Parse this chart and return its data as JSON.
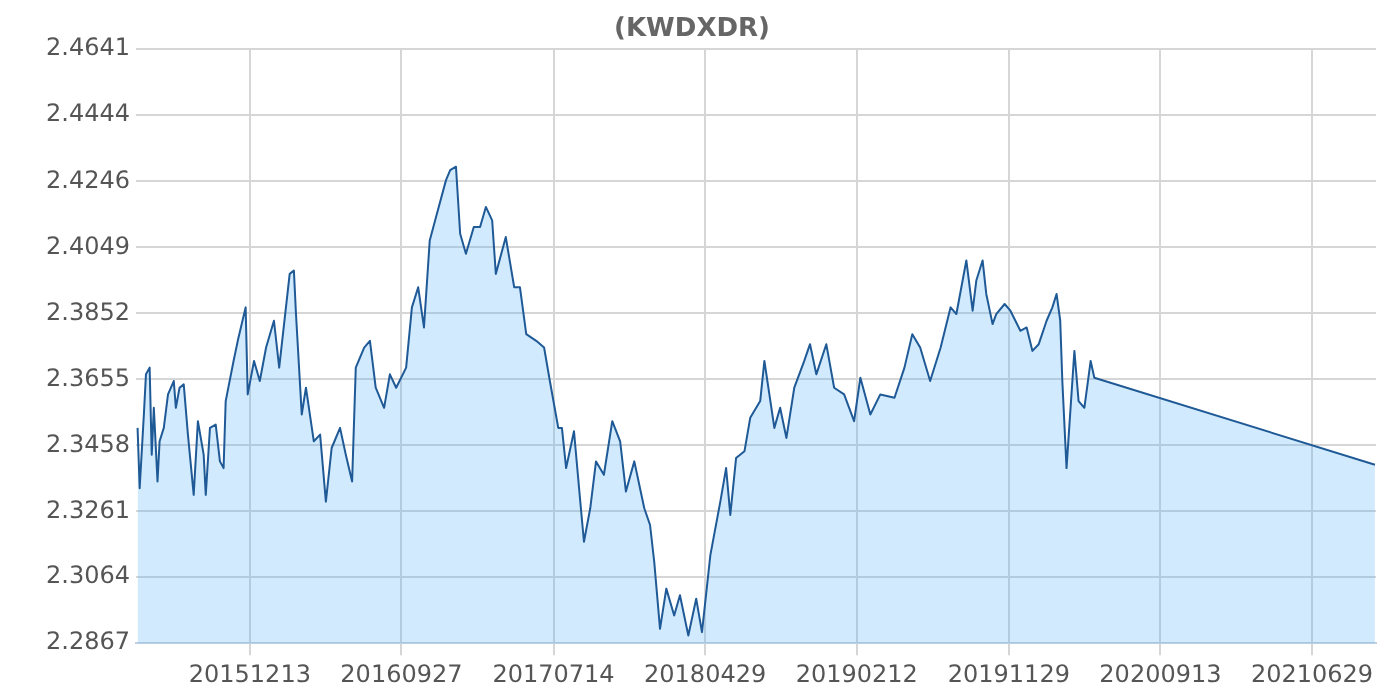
{
  "chart_data": {
    "type": "area",
    "title": "(KWDXDR)",
    "x": [
      "2015-05-13",
      "2015-05-17",
      "2015-05-25",
      "2015-05-29",
      "2015-06-05",
      "2015-06-09",
      "2015-06-13",
      "2015-06-20",
      "2015-06-24",
      "2015-07-02",
      "2015-07-10",
      "2015-07-21",
      "2015-07-25",
      "2015-08-01",
      "2015-08-09",
      "2015-08-17",
      "2015-08-28",
      "2015-09-05",
      "2015-09-16",
      "2015-09-20",
      "2015-09-28",
      "2015-10-09",
      "2015-10-17",
      "2015-10-24",
      "2015-10-28",
      "2015-11-12",
      "2015-11-20",
      "2015-12-05",
      "2015-12-09",
      "2015-12-21",
      "2016-01-01",
      "2016-01-13",
      "2016-01-28",
      "2016-02-07",
      "2016-02-27",
      "2016-03-06",
      "2016-03-10",
      "2016-03-21",
      "2016-03-29",
      "2016-04-13",
      "2016-04-25",
      "2016-05-06",
      "2016-05-17",
      "2016-06-02",
      "2016-06-13",
      "2016-06-25",
      "2016-07-02",
      "2016-07-18",
      "2016-07-29",
      "2016-08-09",
      "2016-08-25",
      "2016-09-05",
      "2016-09-17",
      "2016-10-06",
      "2016-10-17",
      "2016-10-29",
      "2016-11-09",
      "2016-11-20",
      "2016-12-02",
      "2016-12-21",
      "2016-12-29",
      "2017-01-09",
      "2017-01-17",
      "2017-01-28",
      "2017-02-12",
      "2017-02-24",
      "2017-03-07",
      "2017-03-19",
      "2017-03-26",
      "2017-04-14",
      "2017-04-30",
      "2017-05-11",
      "2017-05-23",
      "2017-06-11",
      "2017-06-26",
      "2017-07-07",
      "2017-07-23",
      "2017-07-30",
      "2017-08-07",
      "2017-08-22",
      "2017-09-03",
      "2017-09-10",
      "2017-09-22",
      "2017-10-03",
      "2017-10-18",
      "2017-11-03",
      "2017-11-18",
      "2017-11-29",
      "2017-12-15",
      "2018-01-03",
      "2018-01-14",
      "2018-01-22",
      "2018-02-02",
      "2018-02-14",
      "2018-03-01",
      "2018-03-12",
      "2018-03-28",
      "2018-04-12",
      "2018-04-23",
      "2018-05-09",
      "2018-05-28",
      "2018-06-08",
      "2018-06-16",
      "2018-06-27",
      "2018-07-13",
      "2018-07-24",
      "2018-08-12",
      "2018-08-20",
      "2018-09-08",
      "2018-09-19",
      "2018-10-01",
      "2018-10-16",
      "2018-11-04",
      "2018-11-15",
      "2018-11-27",
      "2018-12-16",
      "2018-12-31",
      "2019-01-19",
      "2019-02-07",
      "2019-02-19",
      "2019-03-10",
      "2019-03-29",
      "2019-04-25",
      "2019-05-14",
      "2019-05-29",
      "2019-06-13",
      "2019-07-02",
      "2019-07-22",
      "2019-08-10",
      "2019-08-21",
      "2019-09-09",
      "2019-09-21",
      "2019-09-28",
      "2019-10-10",
      "2019-10-17",
      "2019-10-29",
      "2019-11-05",
      "2019-11-21",
      "2019-12-02",
      "2019-12-21",
      "2020-01-02",
      "2020-01-13",
      "2020-01-25",
      "2020-02-09",
      "2020-02-20",
      "2020-02-28",
      "2020-03-06",
      "2020-03-10",
      "2020-03-18",
      "2020-04-02",
      "2020-04-10",
      "2020-04-21",
      "2020-05-03",
      "2020-05-10",
      "2021-10-27"
    ],
    "series": [
      {
        "color": "#1f5a96",
        "values": [
          2.351,
          2.333,
          2.355,
          2.367,
          2.369,
          2.343,
          2.357,
          2.335,
          2.347,
          2.351,
          2.361,
          2.365,
          2.357,
          2.363,
          2.364,
          2.349,
          2.331,
          2.353,
          2.343,
          2.331,
          2.351,
          2.352,
          2.341,
          2.339,
          2.359,
          2.371,
          2.377,
          2.387,
          2.361,
          2.371,
          2.365,
          2.375,
          2.383,
          2.369,
          2.397,
          2.398,
          2.385,
          2.355,
          2.363,
          2.347,
          2.349,
          2.329,
          2.345,
          2.351,
          2.343,
          2.335,
          2.369,
          2.375,
          2.377,
          2.363,
          2.357,
          2.367,
          2.363,
          2.369,
          2.387,
          2.393,
          2.381,
          2.407,
          2.414,
          2.425,
          2.428,
          2.429,
          2.409,
          2.403,
          2.411,
          2.411,
          2.417,
          2.413,
          2.397,
          2.408,
          2.393,
          2.393,
          2.379,
          2.377,
          2.375,
          2.365,
          2.351,
          2.351,
          2.339,
          2.35,
          2.329,
          2.317,
          2.327,
          2.341,
          2.337,
          2.353,
          2.347,
          2.332,
          2.341,
          2.327,
          2.322,
          2.311,
          2.291,
          2.303,
          2.295,
          2.301,
          2.289,
          2.3,
          2.29,
          2.313,
          2.329,
          2.339,
          2.325,
          2.342,
          2.344,
          2.354,
          2.359,
          2.371,
          2.351,
          2.357,
          2.348,
          2.363,
          2.371,
          2.376,
          2.367,
          2.376,
          2.363,
          2.361,
          2.353,
          2.366,
          2.355,
          2.361,
          2.36,
          2.369,
          2.379,
          2.375,
          2.365,
          2.375,
          2.387,
          2.385,
          2.401,
          2.386,
          2.395,
          2.401,
          2.391,
          2.382,
          2.385,
          2.388,
          2.386,
          2.38,
          2.381,
          2.374,
          2.376,
          2.383,
          2.387,
          2.391,
          2.383,
          2.365,
          2.339,
          2.374,
          2.359,
          2.357,
          2.371,
          2.366,
          2.34
        ]
      }
    ],
    "xlim": [
      "2015-05-10",
      "2021-10-29"
    ],
    "xticks": [
      {
        "value": "2015-12-13",
        "label": "20151213"
      },
      {
        "value": "2016-09-27",
        "label": "20160927"
      },
      {
        "value": "2017-07-14",
        "label": "20170714"
      },
      {
        "value": "2018-04-29",
        "label": "20180429"
      },
      {
        "value": "2019-02-12",
        "label": "20190212"
      },
      {
        "value": "2019-11-29",
        "label": "20191129"
      },
      {
        "value": "2020-09-13",
        "label": "20200913"
      },
      {
        "value": "2021-06-29",
        "label": "20210629"
      }
    ],
    "ylim": [
      2.2867,
      2.4641
    ],
    "yticks": [
      2.2867,
      2.3064,
      2.3261,
      2.3458,
      2.3655,
      2.3852,
      2.4049,
      2.4246,
      2.4444,
      2.4641
    ],
    "grid": true,
    "legend": false,
    "marker": "none",
    "line_style": "solid"
  }
}
